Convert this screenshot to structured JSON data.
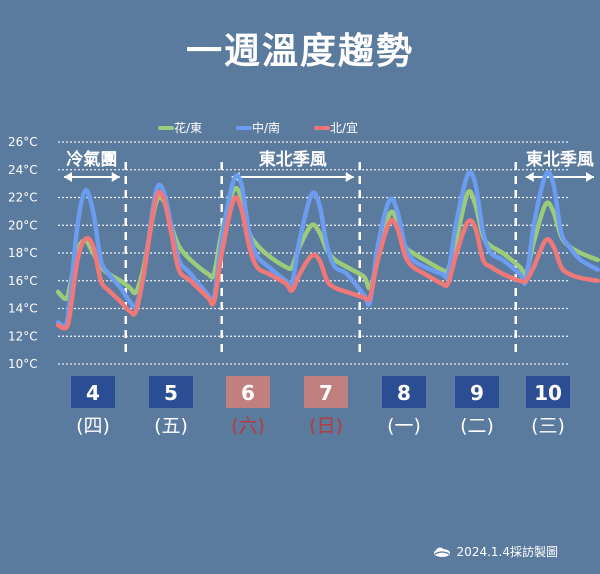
{
  "chart_data": {
    "type": "line",
    "title": "一週溫度趨勢",
    "ylabel": "",
    "xlabel": "",
    "ylim": [
      10,
      26
    ],
    "y_ticks": [
      "26°C",
      "24°C",
      "22°C",
      "20°C",
      "18°C",
      "16°C",
      "14°C",
      "12°C",
      "10°C"
    ],
    "y_tick_values": [
      26,
      24,
      22,
      20,
      18,
      16,
      14,
      12,
      10
    ],
    "grid": true,
    "legend_position": "top",
    "days": [
      {
        "num": "4",
        "weekday": "(四)",
        "weekend": false
      },
      {
        "num": "5",
        "weekday": "(五)",
        "weekend": false
      },
      {
        "num": "6",
        "weekday": "(六)",
        "weekend": true
      },
      {
        "num": "7",
        "weekday": "(日)",
        "weekend": true
      },
      {
        "num": "8",
        "weekday": "(一)",
        "weekend": false
      },
      {
        "num": "9",
        "weekday": "(二)",
        "weekend": false
      },
      {
        "num": "10",
        "weekday": "(三)",
        "weekend": false
      }
    ],
    "x": [
      0,
      0.1,
      0.15,
      0.25,
      0.35,
      0.45,
      0.55,
      0.65,
      0.8,
      0.92,
      1,
      1.1,
      1.25,
      1.35,
      1.45,
      1.55,
      1.7,
      1.92,
      2,
      2.1,
      2.25,
      2.35,
      2.45,
      2.55,
      2.7,
      2.92,
      3,
      3.1,
      3.25,
      3.35,
      3.45,
      3.55,
      3.7,
      3.92,
      4,
      4.1,
      4.25,
      4.35,
      4.45,
      4.55,
      4.7,
      4.92,
      5,
      5.1,
      5.25,
      5.35,
      5.45,
      5.55,
      5.7,
      5.92,
      6,
      6.1,
      6.25,
      6.35,
      6.45,
      6.55,
      6.7,
      6.92
    ],
    "series": [
      {
        "name": "花/東",
        "color": "#9ccc7a",
        "values": [
          15.2,
          14.7,
          15.5,
          18.2,
          18.9,
          18.0,
          17.0,
          16.5,
          16.0,
          15.5,
          15.2,
          17.0,
          21.5,
          21.8,
          20.0,
          18.5,
          17.5,
          16.5,
          16.5,
          19.5,
          22.5,
          22.0,
          19.5,
          18.6,
          17.8,
          17.0,
          17.0,
          18.5,
          20.0,
          19.5,
          18.2,
          17.5,
          17.0,
          16.3,
          15.5,
          17.5,
          20.8,
          20.3,
          18.5,
          18.0,
          17.5,
          16.8,
          16.8,
          18.8,
          22.3,
          21.5,
          19.2,
          18.5,
          18.0,
          17.0,
          16.5,
          18.8,
          21.5,
          21.0,
          19.2,
          18.5,
          18.0,
          17.5
        ]
      },
      {
        "name": "中/南",
        "color": "#6b9cf0",
        "values": [
          13.0,
          12.8,
          14.5,
          20.0,
          22.5,
          21.0,
          17.5,
          16.5,
          15.5,
          14.5,
          14.2,
          16.5,
          22.3,
          22.5,
          20.0,
          17.5,
          16.5,
          15.0,
          14.8,
          19.0,
          23.2,
          23.0,
          19.5,
          17.8,
          17.0,
          16.0,
          15.8,
          19.0,
          22.2,
          21.5,
          18.5,
          17.0,
          16.5,
          15.0,
          14.5,
          18.5,
          21.8,
          21.0,
          18.5,
          17.5,
          17.0,
          16.5,
          16.5,
          20.0,
          23.6,
          23.0,
          19.5,
          18.0,
          17.5,
          16.5,
          16.0,
          20.0,
          23.6,
          23.0,
          19.5,
          18.5,
          17.5,
          16.8
        ]
      },
      {
        "name": "北/宜",
        "color": "#f07878",
        "values": [
          12.8,
          12.6,
          13.5,
          17.5,
          19.0,
          18.5,
          16.0,
          15.3,
          14.5,
          13.8,
          13.8,
          16.5,
          21.8,
          22.0,
          19.5,
          16.8,
          16.0,
          14.8,
          14.5,
          18.0,
          21.8,
          21.2,
          18.5,
          17.0,
          16.5,
          15.8,
          15.3,
          16.5,
          17.8,
          17.5,
          16.0,
          15.5,
          15.2,
          14.8,
          14.8,
          17.5,
          20.2,
          19.8,
          17.8,
          17.0,
          16.5,
          15.8,
          15.8,
          17.8,
          20.2,
          19.8,
          17.5,
          17.0,
          16.5,
          16.0,
          16.0,
          17.0,
          18.9,
          18.5,
          17.0,
          16.5,
          16.2,
          16.0
        ]
      }
    ],
    "annotations": [
      {
        "text": "冷氣團",
        "from": 0.0,
        "to": 0.92
      },
      {
        "text": "東北季風",
        "from": 2.15,
        "to": 3.92
      },
      {
        "text": "東北季風",
        "from": 5.92,
        "to": 7.0
      }
    ],
    "dividers": [
      0.92,
      2.15,
      3.92,
      5.92
    ]
  },
  "credit": "2024.1.4採訪製圖",
  "colors": {
    "background": "#5a7a9e",
    "day_box": "#2a4d94",
    "weekend_box": "#c08080",
    "weekend_text": "#b83a3a"
  }
}
